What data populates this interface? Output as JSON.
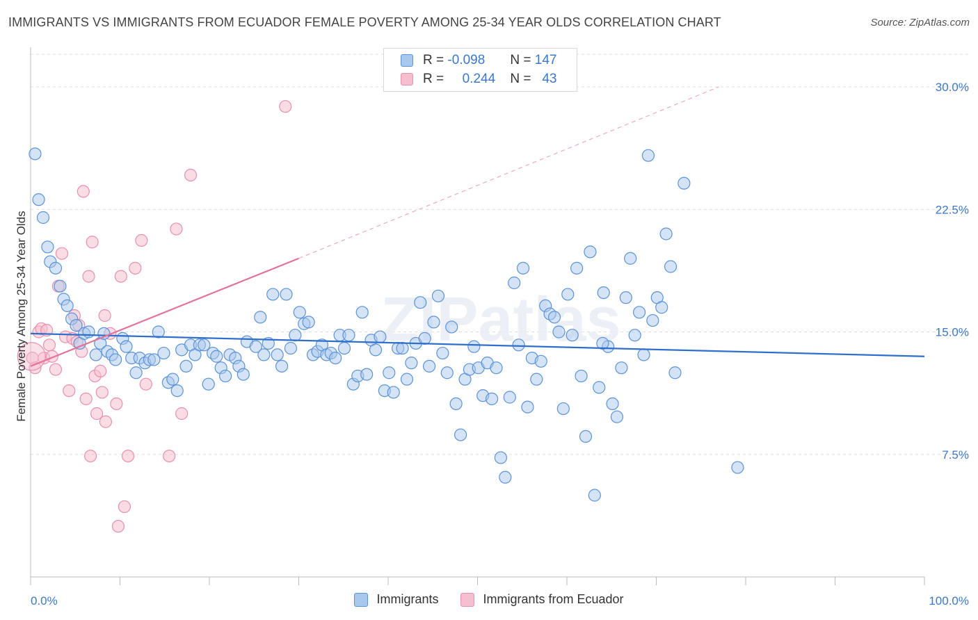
{
  "title": "IMMIGRANTS VS IMMIGRANTS FROM ECUADOR FEMALE POVERTY AMONG 25-34 YEAR OLDS CORRELATION CHART",
  "source": "Source: ZipAtlas.com",
  "watermark": "ZIPatlas",
  "colors": {
    "blue_fill": "#a9c8ee",
    "blue_stroke": "#5b93d6",
    "blue_line": "#2f6fcc",
    "pink_fill": "#f6bfd0",
    "pink_stroke": "#e890ad",
    "pink_line": "#e2739a",
    "axis_text": "#3b78c9",
    "grid": "#dddddd"
  },
  "legend": {
    "rows": [
      {
        "r_label": "R =",
        "r_value": "-0.098",
        "n_label": "N =",
        "n_value": "147"
      },
      {
        "r_label": "R =",
        "r_value": "0.244",
        "n_label": "N =",
        "n_value": "43"
      }
    ]
  },
  "bottom_legend": [
    "Immigrants",
    "Immigrants from Ecuador"
  ],
  "chart_data": {
    "type": "scatter",
    "title": "IMMIGRANTS VS IMMIGRANTS FROM ECUADOR FEMALE POVERTY AMONG 25-34 YEAR OLDS CORRELATION CHART",
    "ylabel": "Female Poverty Among 25-34 Year Olds",
    "xlabel": "",
    "xlim": [
      0,
      100
    ],
    "ylim": [
      0,
      32
    ],
    "x_tick_labels": [
      "0.0%",
      "100.0%"
    ],
    "y_ticks": [
      7.5,
      15.0,
      22.5,
      30.0
    ],
    "y_tick_labels": [
      "7.5%",
      "15.0%",
      "22.5%",
      "30.0%"
    ],
    "grid": "horizontal dashed",
    "series": [
      {
        "name": "Immigrants",
        "color": "blue",
        "trend": {
          "x": [
            0,
            100
          ],
          "y": [
            14.9,
            13.5
          ],
          "style": "solid"
        },
        "points": [
          [
            0.5,
            25.9
          ],
          [
            0.9,
            23.1
          ],
          [
            1.4,
            22.0
          ],
          [
            1.9,
            20.2
          ],
          [
            2.2,
            19.3
          ],
          [
            2.8,
            18.9
          ],
          [
            3.3,
            17.8
          ],
          [
            3.7,
            17.0
          ],
          [
            4.1,
            16.6
          ],
          [
            4.6,
            15.8
          ],
          [
            5.1,
            15.4
          ],
          [
            5.5,
            14.3
          ],
          [
            6.0,
            14.9
          ],
          [
            6.5,
            15.0
          ],
          [
            7.3,
            13.6
          ],
          [
            7.8,
            14.3
          ],
          [
            8.2,
            14.9
          ],
          [
            8.6,
            13.8
          ],
          [
            9.1,
            13.6
          ],
          [
            9.5,
            13.3
          ],
          [
            10.3,
            14.6
          ],
          [
            10.7,
            14.1
          ],
          [
            11.3,
            13.4
          ],
          [
            11.8,
            12.5
          ],
          [
            12.2,
            13.4
          ],
          [
            12.8,
            13.1
          ],
          [
            13.3,
            13.3
          ],
          [
            13.8,
            13.3
          ],
          [
            14.3,
            15.0
          ],
          [
            14.9,
            13.7
          ],
          [
            15.4,
            11.9
          ],
          [
            15.9,
            12.1
          ],
          [
            16.4,
            11.4
          ],
          [
            16.9,
            13.9
          ],
          [
            17.4,
            12.9
          ],
          [
            17.9,
            14.2
          ],
          [
            18.4,
            13.6
          ],
          [
            18.9,
            14.2
          ],
          [
            19.4,
            14.2
          ],
          [
            19.9,
            11.8
          ],
          [
            20.4,
            13.7
          ],
          [
            20.8,
            13.5
          ],
          [
            21.3,
            12.8
          ],
          [
            21.8,
            12.3
          ],
          [
            22.3,
            13.6
          ],
          [
            22.9,
            13.4
          ],
          [
            23.3,
            12.9
          ],
          [
            23.8,
            12.4
          ],
          [
            24.2,
            14.4
          ],
          [
            25.2,
            14.1
          ],
          [
            25.7,
            15.9
          ],
          [
            26.1,
            13.6
          ],
          [
            26.6,
            14.3
          ],
          [
            27.1,
            17.3
          ],
          [
            27.6,
            13.6
          ],
          [
            28.1,
            12.9
          ],
          [
            28.6,
            17.3
          ],
          [
            29.1,
            14.0
          ],
          [
            29.6,
            14.8
          ],
          [
            30.1,
            16.2
          ],
          [
            30.6,
            15.5
          ],
          [
            31.1,
            15.6
          ],
          [
            31.6,
            13.6
          ],
          [
            32.1,
            13.8
          ],
          [
            32.6,
            14.2
          ],
          [
            33.1,
            13.6
          ],
          [
            33.6,
            13.7
          ],
          [
            34.1,
            13.4
          ],
          [
            34.6,
            14.8
          ],
          [
            35.1,
            14.0
          ],
          [
            35.6,
            14.8
          ],
          [
            36.1,
            11.8
          ],
          [
            36.6,
            12.3
          ],
          [
            37.1,
            16.2
          ],
          [
            37.6,
            12.4
          ],
          [
            38.1,
            14.5
          ],
          [
            38.6,
            13.9
          ],
          [
            39.1,
            14.7
          ],
          [
            39.6,
            11.4
          ],
          [
            40.1,
            12.5
          ],
          [
            40.6,
            11.3
          ],
          [
            41.1,
            14.0
          ],
          [
            41.6,
            14.0
          ],
          [
            42.1,
            12.1
          ],
          [
            42.6,
            13.1
          ],
          [
            43.1,
            14.3
          ],
          [
            43.6,
            16.8
          ],
          [
            44.1,
            14.6
          ],
          [
            44.6,
            12.9
          ],
          [
            45.1,
            15.6
          ],
          [
            45.6,
            17.2
          ],
          [
            46.1,
            13.7
          ],
          [
            46.6,
            12.5
          ],
          [
            47.1,
            15.3
          ],
          [
            47.6,
            10.6
          ],
          [
            48.1,
            8.7
          ],
          [
            48.6,
            12.1
          ],
          [
            49.1,
            12.7
          ],
          [
            49.6,
            14.1
          ],
          [
            50.1,
            12.8
          ],
          [
            50.6,
            11.1
          ],
          [
            51.1,
            13.1
          ],
          [
            51.6,
            10.9
          ],
          [
            52.1,
            12.8
          ],
          [
            52.6,
            7.3
          ],
          [
            53.1,
            6.1
          ],
          [
            53.6,
            11.0
          ],
          [
            54.1,
            18.0
          ],
          [
            54.6,
            14.2
          ],
          [
            55.1,
            18.9
          ],
          [
            55.6,
            10.4
          ],
          [
            56.1,
            13.4
          ],
          [
            56.6,
            12.1
          ],
          [
            57.1,
            13.2
          ],
          [
            57.6,
            16.6
          ],
          [
            58.1,
            16.1
          ],
          [
            58.6,
            15.9
          ],
          [
            59.1,
            15.0
          ],
          [
            59.6,
            10.3
          ],
          [
            60.1,
            17.3
          ],
          [
            60.6,
            14.8
          ],
          [
            61.1,
            18.9
          ],
          [
            61.6,
            12.3
          ],
          [
            62.1,
            8.6
          ],
          [
            62.6,
            19.9
          ],
          [
            63.1,
            5.0
          ],
          [
            63.6,
            11.6
          ],
          [
            64.1,
            17.4
          ],
          [
            64.6,
            14.1
          ],
          [
            65.1,
            10.6
          ],
          [
            65.6,
            9.8
          ],
          [
            66.1,
            12.8
          ],
          [
            66.6,
            17.1
          ],
          [
            67.1,
            19.5
          ],
          [
            67.6,
            14.8
          ],
          [
            68.1,
            16.2
          ],
          [
            68.6,
            13.6
          ],
          [
            69.1,
            25.8
          ],
          [
            69.6,
            15.7
          ],
          [
            70.1,
            17.1
          ],
          [
            70.6,
            16.5
          ],
          [
            71.1,
            21.0
          ],
          [
            71.6,
            19.0
          ],
          [
            72.1,
            12.5
          ],
          [
            73.1,
            24.1
          ],
          [
            79.1,
            6.7
          ],
          [
            64.0,
            14.3
          ]
        ]
      },
      {
        "name": "Immigrants from Ecuador",
        "color": "pink",
        "trend": {
          "x": [
            0,
            30
          ],
          "y": [
            12.9,
            19.5
          ],
          "style": "solid",
          "extension": {
            "x": [
              30,
              77
            ],
            "y": [
              19.5,
              30.0
            ],
            "style": "dashed"
          }
        },
        "points": [
          [
            0.2,
            13.4
          ],
          [
            0.5,
            12.8
          ],
          [
            0.9,
            15.0
          ],
          [
            1.2,
            15.2
          ],
          [
            1.5,
            13.4
          ],
          [
            1.8,
            15.1
          ],
          [
            2.1,
            14.2
          ],
          [
            2.4,
            13.5
          ],
          [
            2.8,
            12.7
          ],
          [
            3.1,
            17.8
          ],
          [
            3.5,
            19.8
          ],
          [
            3.9,
            14.7
          ],
          [
            4.3,
            11.4
          ],
          [
            4.7,
            14.6
          ],
          [
            4.9,
            16.0
          ],
          [
            5.2,
            14.4
          ],
          [
            5.4,
            15.4
          ],
          [
            5.7,
            13.8
          ],
          [
            5.9,
            23.6
          ],
          [
            6.2,
            10.9
          ],
          [
            6.5,
            18.4
          ],
          [
            6.7,
            7.4
          ],
          [
            6.9,
            20.5
          ],
          [
            7.2,
            12.3
          ],
          [
            7.4,
            10.0
          ],
          [
            7.8,
            12.6
          ],
          [
            8.0,
            11.3
          ],
          [
            8.3,
            16.0
          ],
          [
            8.4,
            9.5
          ],
          [
            8.9,
            14.9
          ],
          [
            9.6,
            10.6
          ],
          [
            9.8,
            3.1
          ],
          [
            10.1,
            18.4
          ],
          [
            10.5,
            4.3
          ],
          [
            10.9,
            7.4
          ],
          [
            11.7,
            18.9
          ],
          [
            12.4,
            20.6
          ],
          [
            12.9,
            11.8
          ],
          [
            15.5,
            7.4
          ],
          [
            16.3,
            21.3
          ],
          [
            16.9,
            10.0
          ],
          [
            17.9,
            24.6
          ],
          [
            28.5,
            28.8
          ]
        ]
      }
    ]
  }
}
